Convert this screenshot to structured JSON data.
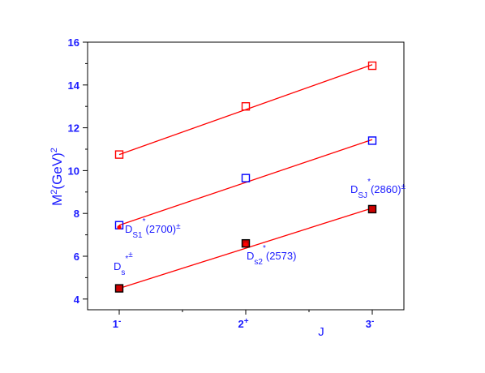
{
  "chart_data": {
    "type": "scatter",
    "xlabel": "J",
    "ylabel": {
      "base": "M",
      "sup1": "2",
      "mid": "(GeV)",
      "sup2": "2"
    },
    "x_ticks": [
      {
        "x": 1,
        "main": "1",
        "sup": "-"
      },
      {
        "x": 2,
        "main": "2",
        "sup": "+"
      },
      {
        "x": 3,
        "main": "3",
        "sup": "-"
      }
    ],
    "y_ticks": [
      4,
      6,
      8,
      10,
      12,
      14,
      16
    ],
    "xlim": [
      0.75,
      3.25
    ],
    "ylim": [
      3.5,
      16
    ],
    "series": [
      {
        "marker": "open-square",
        "color": "#ff0000",
        "points": [
          {
            "x": 1,
            "y": 10.75
          },
          {
            "x": 2,
            "y": 13.0
          },
          {
            "x": 3,
            "y": 14.9
          }
        ],
        "fit": [
          {
            "x": 1,
            "y": 10.75
          },
          {
            "x": 3,
            "y": 14.95
          }
        ]
      },
      {
        "marker": "open-square",
        "color": "#0000ff",
        "points": [
          {
            "x": 1,
            "y": 7.45
          },
          {
            "x": 2,
            "y": 9.65
          },
          {
            "x": 3,
            "y": 11.4
          }
        ],
        "fit": [
          {
            "x": 1,
            "y": 7.45
          },
          {
            "x": 3,
            "y": 11.45
          }
        ]
      },
      {
        "marker": "filled-square",
        "color": "#000000",
        "points": [
          {
            "x": 1,
            "y": 4.5
          },
          {
            "x": 2,
            "y": 6.6
          },
          {
            "x": 3,
            "y": 8.2
          }
        ],
        "fit": [
          {
            "x": 1,
            "y": 4.5
          },
          {
            "x": 3,
            "y": 8.25
          }
        ]
      },
      {
        "marker": "dot",
        "color": "#ff0000",
        "points": [
          {
            "x": 1,
            "y": 7.35
          },
          {
            "x": 2,
            "y": 6.55
          }
        ]
      }
    ],
    "fit_color": "#ff0000",
    "annotations": [
      {
        "base": "D",
        "sub": "S1",
        "sup": "*",
        "tail": "(2700)",
        "tail_sup": "±"
      },
      {
        "base": "D",
        "sub": "s",
        "sup": "*",
        "tail": "",
        "tail_sup": "±"
      },
      {
        "base": "D",
        "sub": "s2",
        "sup": "*",
        "tail": "(2573)",
        "tail_sup": ""
      },
      {
        "base": "D",
        "sub": "SJ",
        "sup": "*",
        "tail": "(2860)",
        "tail_sup": "±"
      }
    ]
  }
}
